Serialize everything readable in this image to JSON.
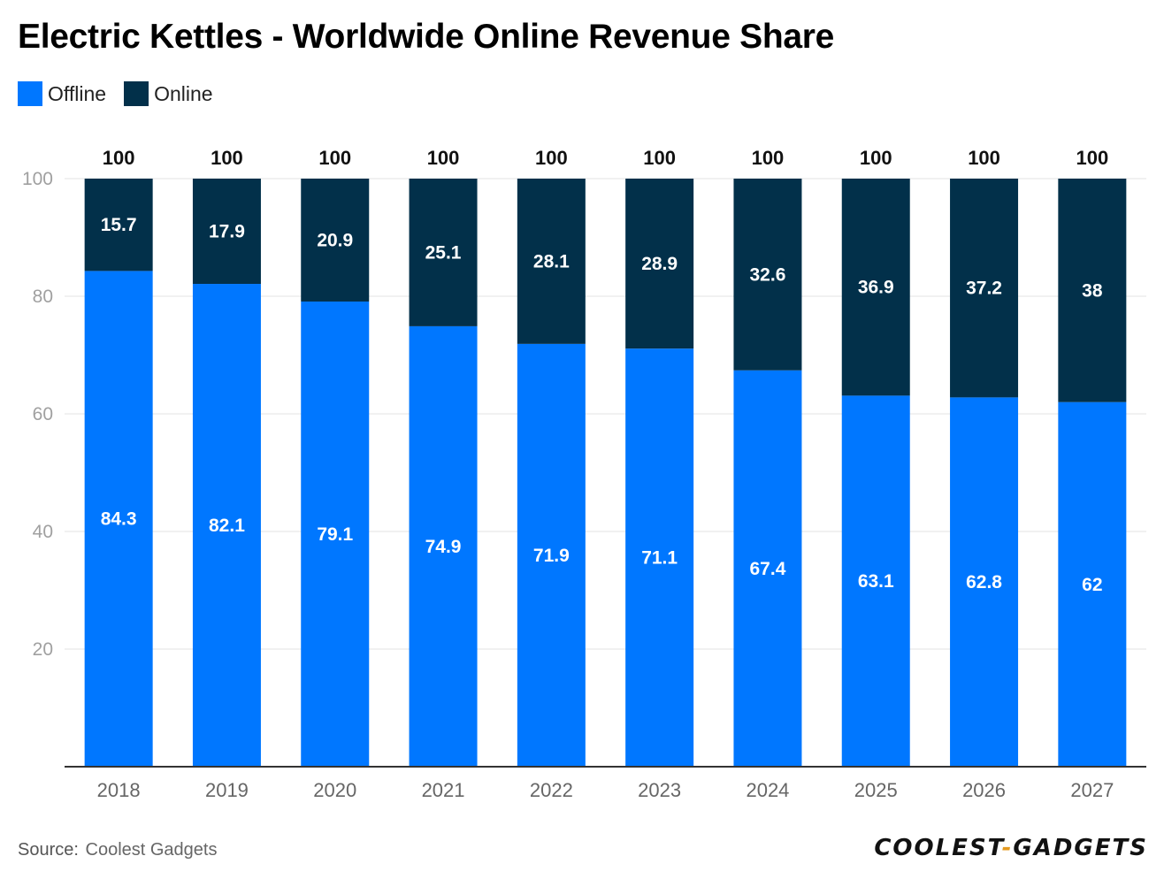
{
  "title": "Electric Kettles - Worldwide Online Revenue Share",
  "legend": [
    {
      "label": "Offline",
      "color": "#0077ff"
    },
    {
      "label": "Online",
      "color": "#02304a"
    }
  ],
  "source": {
    "label": "Source:",
    "name": "Coolest Gadgets"
  },
  "brand": {
    "left": "COOLEST",
    "sep": "-",
    "right": "GADGETS"
  },
  "chart_data": {
    "type": "bar",
    "stacked": true,
    "title": "Electric Kettles - Worldwide Online Revenue Share",
    "categories": [
      "2018",
      "2019",
      "2020",
      "2021",
      "2022",
      "2023",
      "2024",
      "2025",
      "2026",
      "2027"
    ],
    "series": [
      {
        "name": "Offline",
        "color": "#0077ff",
        "values": [
          84.3,
          82.1,
          79.1,
          74.9,
          71.9,
          71.1,
          67.4,
          63.1,
          62.8,
          62
        ]
      },
      {
        "name": "Online",
        "color": "#02304a",
        "values": [
          15.7,
          17.9,
          20.9,
          25.1,
          28.1,
          28.9,
          32.6,
          36.9,
          37.2,
          38
        ]
      }
    ],
    "totals": [
      100,
      100,
      100,
      100,
      100,
      100,
      100,
      100,
      100,
      100
    ],
    "ylim": [
      0,
      100
    ],
    "yticks": [
      20,
      40,
      60,
      80,
      100
    ],
    "xlabel": "",
    "ylabel": "",
    "grid": true,
    "legend_position": "top-left"
  }
}
